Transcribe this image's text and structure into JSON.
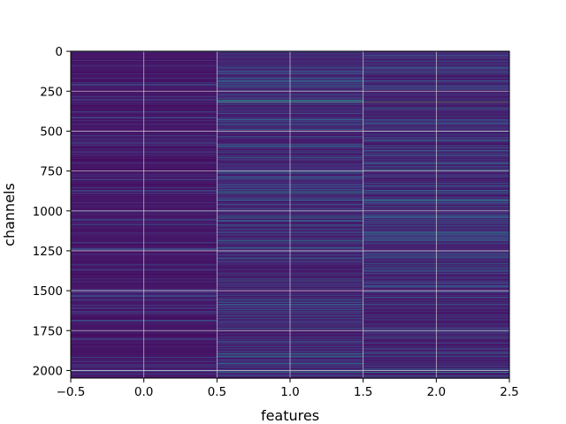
{
  "chart_data": {
    "type": "heatmap",
    "title": "",
    "xlabel": "features",
    "ylabel": "channels",
    "colormap": "viridis",
    "grid": true,
    "columns": 3,
    "rows": 2048,
    "xlim": [
      -0.5,
      2.5
    ],
    "ylim": [
      2047.5,
      -0.5
    ],
    "x_ticks": [
      -0.5,
      0.0,
      0.5,
      1.0,
      1.5,
      2.0,
      2.5
    ],
    "x_tick_labels": [
      "−0.5",
      "0.0",
      "0.5",
      "1.0",
      "1.5",
      "2.0",
      "2.5"
    ],
    "y_ticks": [
      0,
      250,
      500,
      750,
      1000,
      1250,
      1500,
      1750,
      2000
    ],
    "y_tick_labels": [
      "0",
      "250",
      "500",
      "750",
      "1000",
      "1250",
      "1500",
      "1750",
      "2000"
    ],
    "bright_rows": [
      {
        "row": 320,
        "values": [
          0.05,
          0.9,
          0.85
        ]
      },
      {
        "row": 455,
        "values": [
          0.1,
          0.45,
          0.4
        ]
      },
      {
        "row": 500,
        "values": [
          0.05,
          0.3,
          0.55
        ]
      },
      {
        "row": 880,
        "values": [
          0.05,
          0.5,
          0.45
        ]
      },
      {
        "row": 1750,
        "values": [
          0.05,
          0.45,
          0.4
        ]
      },
      {
        "row": 1910,
        "values": [
          0.05,
          0.35,
          0.45
        ]
      },
      {
        "row": 2010,
        "values": [
          0.05,
          0.4,
          0.45
        ]
      }
    ]
  }
}
